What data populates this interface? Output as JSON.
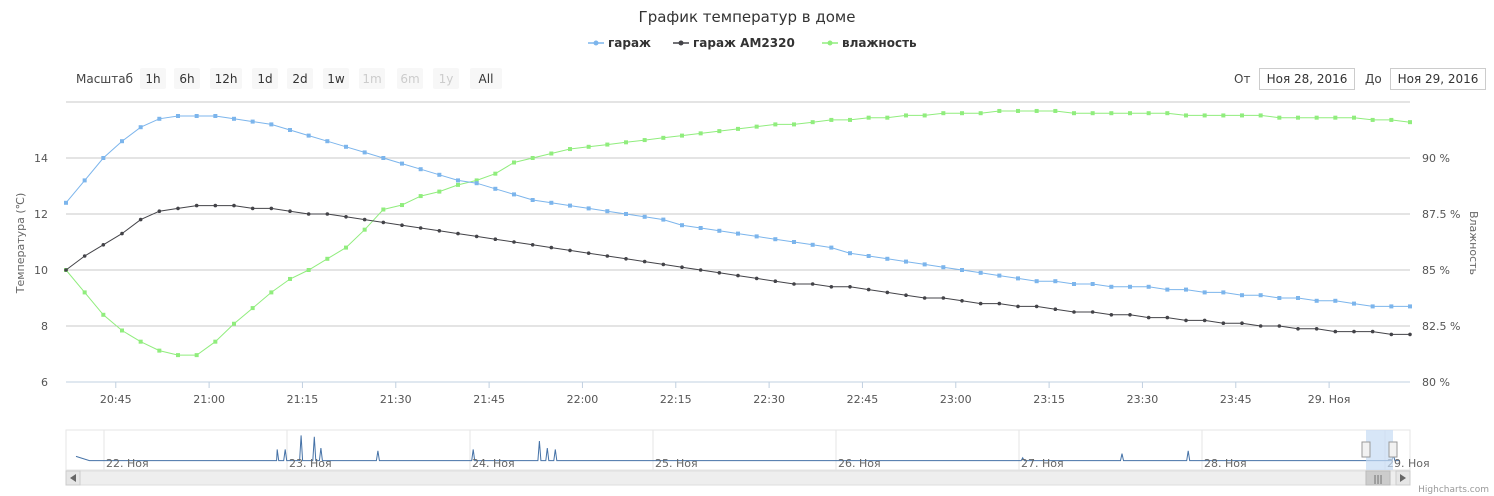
{
  "chart_data": {
    "type": "line",
    "title": "График температур в доме",
    "x_start": "20:37",
    "x_end": "29. Ноя 00:13",
    "x_ticks": [
      "20:45",
      "21:00",
      "21:15",
      "21:30",
      "21:45",
      "22:00",
      "22:15",
      "22:30",
      "22:45",
      "23:00",
      "23:15",
      "23:30",
      "23:45",
      "29. Ноя"
    ],
    "y_left": {
      "label": "Температура (℃)",
      "ticks": [
        "6",
        "8",
        "10",
        "12",
        "14"
      ],
      "range": [
        6,
        16
      ]
    },
    "y_right": {
      "label": "Влажность",
      "ticks": [
        "80 %",
        "82.5 %",
        "85 %",
        "87.5 %",
        "90 %"
      ],
      "range": [
        80,
        92.5
      ]
    },
    "grid": true,
    "legend_position": "top-center",
    "series": [
      {
        "name": "гараж",
        "color": "#7cb5ec",
        "axis": "left",
        "x": [
          "20:37",
          "20:40",
          "20:43",
          "20:46",
          "20:49",
          "20:52",
          "20:55",
          "20:58",
          "21:01",
          "21:04",
          "21:07",
          "21:10",
          "21:13",
          "21:16",
          "21:19",
          "21:22",
          "21:25",
          "21:28",
          "21:31",
          "21:34",
          "21:37",
          "21:40",
          "21:43",
          "21:46",
          "21:49",
          "21:52",
          "21:55",
          "21:58",
          "22:01",
          "22:04",
          "22:07",
          "22:10",
          "22:13",
          "22:16",
          "22:19",
          "22:22",
          "22:25",
          "22:28",
          "22:31",
          "22:34",
          "22:37",
          "22:40",
          "22:43",
          "22:46",
          "22:49",
          "22:52",
          "22:55",
          "22:58",
          "23:01",
          "23:04",
          "23:07",
          "23:10",
          "23:13",
          "23:16",
          "23:19",
          "23:22",
          "23:25",
          "23:28",
          "23:31",
          "23:34",
          "23:37",
          "23:40",
          "23:43",
          "23:46",
          "23:49",
          "23:52",
          "23:55",
          "23:58",
          "00:01",
          "00:04",
          "00:07",
          "00:10",
          "00:13"
        ],
        "values": [
          12.4,
          13.2,
          14.0,
          14.6,
          15.1,
          15.4,
          15.5,
          15.5,
          15.5,
          15.4,
          15.3,
          15.2,
          15.0,
          14.8,
          14.6,
          14.4,
          14.2,
          14.0,
          13.8,
          13.6,
          13.4,
          13.2,
          13.1,
          12.9,
          12.7,
          12.5,
          12.4,
          12.3,
          12.2,
          12.1,
          12.0,
          11.9,
          11.8,
          11.6,
          11.5,
          11.4,
          11.3,
          11.2,
          11.1,
          11.0,
          10.9,
          10.8,
          10.6,
          10.5,
          10.4,
          10.3,
          10.2,
          10.1,
          10.0,
          9.9,
          9.8,
          9.7,
          9.6,
          9.6,
          9.5,
          9.5,
          9.4,
          9.4,
          9.4,
          9.3,
          9.3,
          9.2,
          9.2,
          9.1,
          9.1,
          9.0,
          9.0,
          8.9,
          8.9,
          8.8,
          8.7,
          8.7,
          8.7
        ]
      },
      {
        "name": "гараж AM2320",
        "color": "#434348",
        "axis": "left",
        "x": [
          "20:37",
          "20:40",
          "20:43",
          "20:46",
          "20:49",
          "20:52",
          "20:55",
          "20:58",
          "21:01",
          "21:04",
          "21:07",
          "21:10",
          "21:13",
          "21:16",
          "21:19",
          "21:22",
          "21:25",
          "21:28",
          "21:31",
          "21:34",
          "21:37",
          "21:40",
          "21:43",
          "21:46",
          "21:49",
          "21:52",
          "21:55",
          "21:58",
          "22:01",
          "22:04",
          "22:07",
          "22:10",
          "22:13",
          "22:16",
          "22:19",
          "22:22",
          "22:25",
          "22:28",
          "22:31",
          "22:34",
          "22:37",
          "22:40",
          "22:43",
          "22:46",
          "22:49",
          "22:52",
          "22:55",
          "22:58",
          "23:01",
          "23:04",
          "23:07",
          "23:10",
          "23:13",
          "23:16",
          "23:19",
          "23:22",
          "23:25",
          "23:28",
          "23:31",
          "23:34",
          "23:37",
          "23:40",
          "23:43",
          "23:46",
          "23:49",
          "23:52",
          "23:55",
          "23:58",
          "00:01",
          "00:04",
          "00:07",
          "00:10",
          "00:13"
        ],
        "values": [
          10.0,
          10.5,
          10.9,
          11.3,
          11.8,
          12.1,
          12.2,
          12.3,
          12.3,
          12.3,
          12.2,
          12.2,
          12.1,
          12.0,
          12.0,
          11.9,
          11.8,
          11.7,
          11.6,
          11.5,
          11.4,
          11.3,
          11.2,
          11.1,
          11.0,
          10.9,
          10.8,
          10.7,
          10.6,
          10.5,
          10.4,
          10.3,
          10.2,
          10.1,
          10.0,
          9.9,
          9.8,
          9.7,
          9.6,
          9.5,
          9.5,
          9.4,
          9.4,
          9.3,
          9.2,
          9.1,
          9.0,
          9.0,
          8.9,
          8.8,
          8.8,
          8.7,
          8.7,
          8.6,
          8.5,
          8.5,
          8.4,
          8.4,
          8.3,
          8.3,
          8.2,
          8.2,
          8.1,
          8.1,
          8.0,
          8.0,
          7.9,
          7.9,
          7.8,
          7.8,
          7.8,
          7.7,
          7.7
        ]
      },
      {
        "name": "влажность",
        "color": "#90ed7d",
        "axis": "right",
        "x": [
          "20:37",
          "20:40",
          "20:43",
          "20:46",
          "20:49",
          "20:52",
          "20:55",
          "20:58",
          "21:01",
          "21:04",
          "21:07",
          "21:10",
          "21:13",
          "21:16",
          "21:19",
          "21:22",
          "21:25",
          "21:28",
          "21:31",
          "21:34",
          "21:37",
          "21:40",
          "21:43",
          "21:46",
          "21:49",
          "21:52",
          "21:55",
          "21:58",
          "22:01",
          "22:04",
          "22:07",
          "22:10",
          "22:13",
          "22:16",
          "22:19",
          "22:22",
          "22:25",
          "22:28",
          "22:31",
          "22:34",
          "22:37",
          "22:40",
          "22:43",
          "22:46",
          "22:49",
          "22:52",
          "22:55",
          "22:58",
          "23:01",
          "23:04",
          "23:07",
          "23:10",
          "23:13",
          "23:16",
          "23:19",
          "23:22",
          "23:25",
          "23:28",
          "23:31",
          "23:34",
          "23:37",
          "23:40",
          "23:43",
          "23:46",
          "23:49",
          "23:52",
          "23:55",
          "23:58",
          "00:01",
          "00:04",
          "00:07",
          "00:10",
          "00:13"
        ],
        "values": [
          85.0,
          84.0,
          83.0,
          82.3,
          81.8,
          81.4,
          81.2,
          81.2,
          81.8,
          82.6,
          83.3,
          84.0,
          84.6,
          85.0,
          85.5,
          86.0,
          86.8,
          87.7,
          87.9,
          88.3,
          88.5,
          88.8,
          89.0,
          89.3,
          89.8,
          90.0,
          90.2,
          90.4,
          90.5,
          90.6,
          90.7,
          90.8,
          90.9,
          91.0,
          91.1,
          91.2,
          91.3,
          91.4,
          91.5,
          91.5,
          91.6,
          91.7,
          91.7,
          91.8,
          91.8,
          91.9,
          91.9,
          92.0,
          92.0,
          92.0,
          92.1,
          92.1,
          92.1,
          92.1,
          92.0,
          92.0,
          92.0,
          92.0,
          92.0,
          92.0,
          91.9,
          91.9,
          91.9,
          91.9,
          91.9,
          91.8,
          91.8,
          91.8,
          91.8,
          91.8,
          91.7,
          91.7,
          91.6
        ]
      }
    ],
    "navigator": {
      "labels": [
        "22. Ноя",
        "23. Ноя",
        "24. Ноя",
        "25. Ноя",
        "26. Ноя",
        "27. Ноя",
        "28. Ноя",
        "29. Ноя"
      ],
      "values": [
        0.8,
        0.2,
        0.2,
        0.2,
        0.2,
        0.2,
        0.2,
        0.2,
        0.2,
        0.2,
        0.2,
        0.2,
        0.2,
        0.2,
        0.2,
        0.2,
        0.2,
        0.2,
        0.2,
        0.2,
        0.2,
        0.2,
        0.2,
        0.2,
        0.2,
        0.2,
        0.2,
        0.2,
        0.2,
        0.2,
        0.2,
        0.2,
        0.2,
        0.2,
        0.2,
        0.2,
        0.2,
        0.2,
        0.2,
        0.2,
        0.2,
        0.2,
        0.2,
        0.2,
        0.2,
        0.2,
        0.2,
        0.2,
        0.2,
        0.2,
        0.2,
        0.2,
        0.2,
        0.2,
        0.2,
        0.2,
        0.2,
        0.2,
        0.2,
        0.2,
        0.2,
        0.2,
        0.2,
        0.2,
        0.2,
        0.2,
        0.2,
        0.2,
        0.2,
        0.2,
        0.2,
        0.2,
        0.2,
        0.2,
        0.2,
        0.2,
        0.2,
        0.2,
        0.2,
        0.2,
        0.2,
        0.2,
        0.2,
        0.2,
        0.2,
        0.2,
        0.2,
        0.2,
        0.2,
        0.2,
        0.2,
        0.2,
        0.2,
        0.2,
        0.2,
        0.2,
        0.2,
        0.2,
        0.2,
        0.2
      ],
      "spikes": [
        {
          "at": 0.152,
          "value": 1.8
        },
        {
          "at": 0.158,
          "value": 1.8
        },
        {
          "at": 0.17,
          "value": 3.8
        },
        {
          "at": 0.18,
          "value": 3.6
        },
        {
          "at": 0.185,
          "value": 2.0
        },
        {
          "at": 0.228,
          "value": 1.6
        },
        {
          "at": 0.3,
          "value": 1.8
        },
        {
          "at": 0.35,
          "value": 3.0
        },
        {
          "at": 0.356,
          "value": 2.0
        },
        {
          "at": 0.362,
          "value": 1.8
        },
        {
          "at": 0.715,
          "value": 0.6
        },
        {
          "at": 0.79,
          "value": 1.2
        },
        {
          "at": 0.84,
          "value": 1.6
        },
        {
          "at": 0.995,
          "value": 1.0
        }
      ]
    }
  },
  "rangeSelector": {
    "label": "Масштаб",
    "buttons": [
      {
        "label": "1h",
        "enabled": true
      },
      {
        "label": "6h",
        "enabled": true
      },
      {
        "label": "12h",
        "enabled": true
      },
      {
        "label": "1d",
        "enabled": true
      },
      {
        "label": "2d",
        "enabled": true
      },
      {
        "label": "1w",
        "enabled": true
      },
      {
        "label": "1m",
        "enabled": false
      },
      {
        "label": "6m",
        "enabled": false
      },
      {
        "label": "1y",
        "enabled": false
      },
      {
        "label": "All",
        "enabled": true
      }
    ],
    "from_label": "От",
    "from_value": "Ноя 28, 2016",
    "to_label": "До",
    "to_value": "Ноя 29, 2016"
  },
  "credits": "Highcharts.com",
  "scrollbar": {
    "thumb_glyph": "|||"
  }
}
